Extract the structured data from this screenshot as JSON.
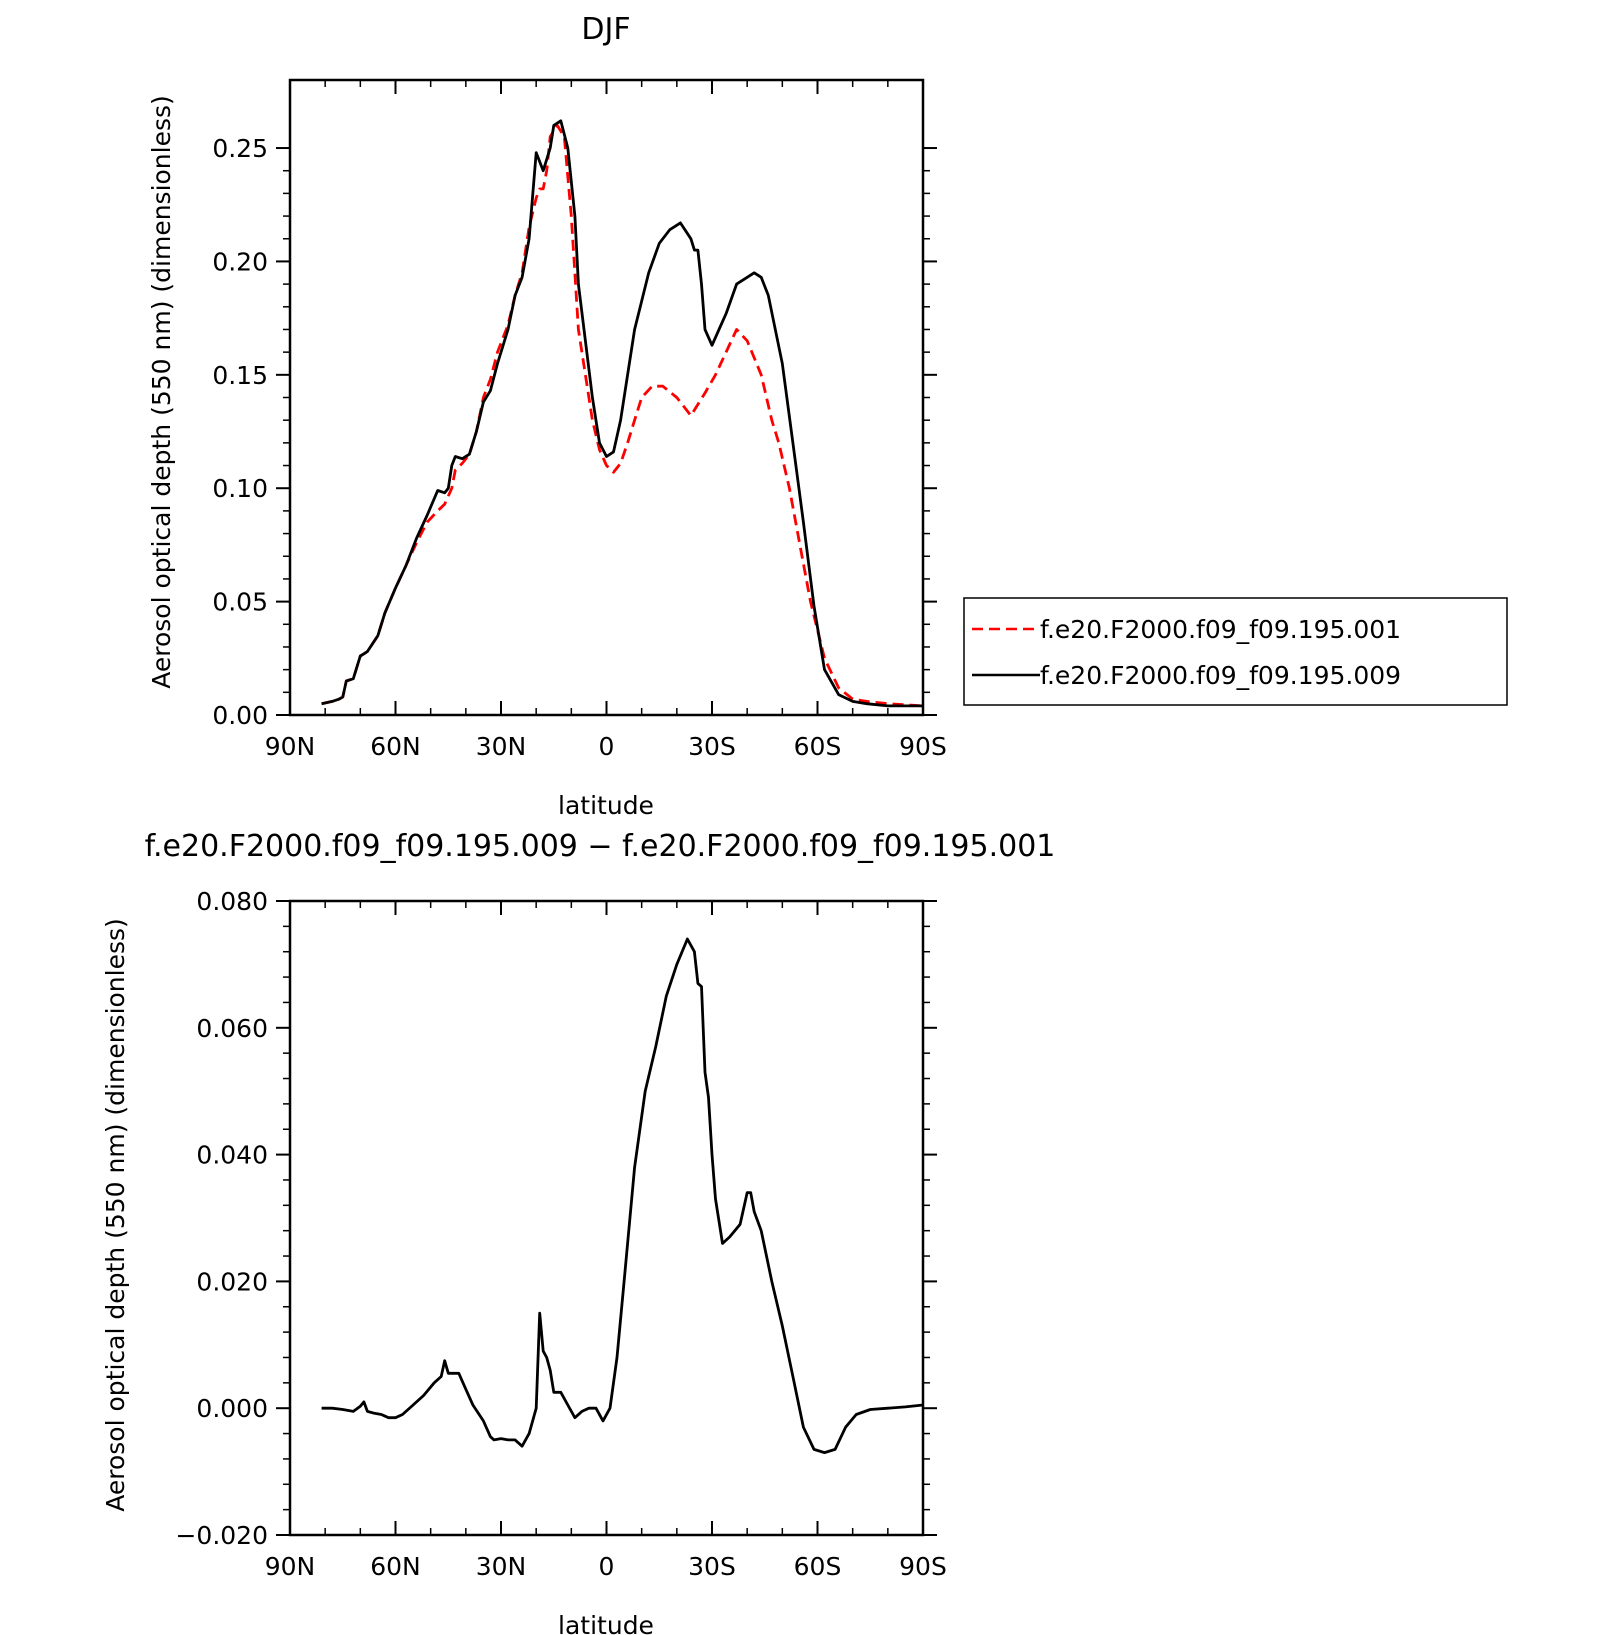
{
  "chart_data": [
    {
      "type": "line",
      "title": "DJF",
      "xlabel": "latitude",
      "ylabel": "Aerosol optical depth (550 nm) (dimensionless)",
      "xlim": [
        90,
        -90
      ],
      "ylim": [
        0,
        0.28
      ],
      "xticks": [
        90,
        60,
        30,
        0,
        -30,
        -60,
        -90
      ],
      "xtick_labels": [
        "90N",
        "60N",
        "30N",
        "0",
        "30S",
        "60S",
        "90S"
      ],
      "yticks": [
        0,
        0.05,
        0.1,
        0.15,
        0.2,
        0.25
      ],
      "ytick_labels": [
        "0.00",
        "0.05",
        "0.10",
        "0.15",
        "0.20",
        "0.25"
      ],
      "legend": {
        "placement": "outside-right"
      },
      "series": [
        {
          "name": "f.e20.F2000.f09_f09.195.001",
          "color": "#ff0000",
          "style": "dashed",
          "x": [
            81,
            78,
            76,
            75,
            74,
            72,
            70,
            69,
            68,
            65,
            63,
            60,
            57,
            54,
            51,
            48,
            46,
            44,
            43,
            41,
            39,
            37,
            35,
            33,
            31,
            28,
            26,
            24,
            22,
            20,
            19,
            18,
            17,
            16,
            14,
            12,
            10,
            8,
            7,
            6,
            4,
            2,
            0,
            -2,
            -4,
            -6,
            -8,
            -10,
            -13,
            -16,
            -20,
            -24,
            -28,
            -31,
            -34,
            -37,
            -40,
            -44,
            -47,
            -49,
            -52,
            -55,
            -58,
            -62,
            -66,
            -70,
            -74,
            -80,
            -90
          ],
          "y": [
            0.005,
            0.006,
            0.007,
            0.008,
            0.015,
            0.016,
            0.026,
            0.027,
            0.028,
            0.035,
            0.045,
            0.056,
            0.066,
            0.076,
            0.085,
            0.09,
            0.093,
            0.1,
            0.108,
            0.111,
            0.115,
            0.125,
            0.14,
            0.148,
            0.16,
            0.172,
            0.185,
            0.195,
            0.215,
            0.228,
            0.232,
            0.232,
            0.24,
            0.255,
            0.26,
            0.255,
            0.22,
            0.17,
            0.16,
            0.15,
            0.13,
            0.117,
            0.11,
            0.107,
            0.111,
            0.12,
            0.13,
            0.14,
            0.145,
            0.145,
            0.14,
            0.132,
            0.142,
            0.15,
            0.16,
            0.17,
            0.165,
            0.15,
            0.13,
            0.12,
            0.1,
            0.075,
            0.05,
            0.025,
            0.012,
            0.007,
            0.006,
            0.005,
            0.004
          ]
        },
        {
          "name": "f.e20.F2000.f09_f09.195.009",
          "color": "#000000",
          "style": "solid",
          "x": [
            81,
            78,
            76,
            75,
            74,
            72,
            70,
            69,
            68,
            65,
            63,
            60,
            57,
            54,
            51,
            48,
            46,
            45,
            44,
            43,
            41,
            39,
            37,
            35,
            33,
            31,
            28,
            26,
            24,
            22,
            20,
            18,
            17,
            16,
            15,
            13,
            11,
            9,
            8,
            6,
            4,
            2,
            0,
            -2,
            -4,
            -6,
            -8,
            -12,
            -15,
            -18,
            -21,
            -24,
            -25,
            -26,
            -27,
            -28,
            -30,
            -32,
            -34,
            -37,
            -40,
            -42,
            -44,
            -46,
            -48,
            -50,
            -53,
            -56,
            -59,
            -62,
            -66,
            -70,
            -74,
            -80,
            -90
          ],
          "y": [
            0.005,
            0.006,
            0.007,
            0.008,
            0.015,
            0.016,
            0.026,
            0.027,
            0.028,
            0.035,
            0.045,
            0.056,
            0.066,
            0.078,
            0.088,
            0.099,
            0.098,
            0.1,
            0.11,
            0.114,
            0.113,
            0.115,
            0.125,
            0.138,
            0.143,
            0.155,
            0.17,
            0.185,
            0.193,
            0.21,
            0.248,
            0.24,
            0.245,
            0.25,
            0.26,
            0.262,
            0.25,
            0.22,
            0.19,
            0.165,
            0.14,
            0.12,
            0.114,
            0.116,
            0.13,
            0.15,
            0.17,
            0.195,
            0.208,
            0.214,
            0.217,
            0.21,
            0.205,
            0.205,
            0.19,
            0.17,
            0.163,
            0.17,
            0.177,
            0.19,
            0.193,
            0.195,
            0.193,
            0.185,
            0.17,
            0.155,
            0.12,
            0.085,
            0.048,
            0.02,
            0.009,
            0.006,
            0.005,
            0.004,
            0.004
          ]
        }
      ]
    },
    {
      "type": "line",
      "title": "f.e20.F2000.f09_f09.195.009 − f.e20.F2000.f09_f09.195.001",
      "xlabel": "latitude",
      "ylabel": "Aerosol optical depth (550 nm) (dimensionless)",
      "xlim": [
        90,
        -90
      ],
      "ylim": [
        -0.02,
        0.08
      ],
      "xticks": [
        90,
        60,
        30,
        0,
        -30,
        -60,
        -90
      ],
      "xtick_labels": [
        "90N",
        "60N",
        "30N",
        "0",
        "30S",
        "60S",
        "90S"
      ],
      "yticks": [
        -0.02,
        0,
        0.02,
        0.04,
        0.06,
        0.08
      ],
      "ytick_labels": [
        "−0.020",
        "0.000",
        "0.020",
        "0.040",
        "0.060",
        "0.080"
      ],
      "series": [
        {
          "color": "#000000",
          "style": "solid",
          "x": [
            81,
            78,
            75,
            72,
            70,
            69,
            68,
            66,
            64,
            62,
            60,
            58,
            55,
            52,
            49,
            47,
            46,
            45,
            44,
            42,
            40,
            38,
            35,
            33,
            32,
            30,
            28,
            26,
            24,
            22,
            20,
            19,
            18,
            17,
            16,
            15,
            14,
            13,
            11,
            9,
            7,
            5,
            3,
            1,
            -1,
            -3,
            -5,
            -8,
            -11,
            -14,
            -17,
            -20,
            -23,
            -25,
            -26,
            -27,
            -28,
            -29,
            -30,
            -31,
            -33,
            -35,
            -38,
            -40,
            -41,
            -42,
            -44,
            -47,
            -50,
            -53,
            -56,
            -59,
            -62,
            -65,
            -68,
            -71,
            -75,
            -80,
            -85,
            -90
          ],
          "y": [
            0,
            0,
            -0.0002,
            -0.0005,
            0.0003,
            0.001,
            -0.0005,
            -0.0008,
            -0.001,
            -0.0015,
            -0.0015,
            -0.001,
            0.0005,
            0.002,
            0.004,
            0.005,
            0.0075,
            0.0055,
            0.0055,
            0.0055,
            0.003,
            0.0005,
            -0.002,
            -0.0045,
            -0.005,
            -0.0048,
            -0.005,
            -0.005,
            -0.006,
            -0.004,
            0,
            0.015,
            0.009,
            0.008,
            0.006,
            0.0025,
            0.0025,
            0.0025,
            0.0005,
            -0.0015,
            -0.0005,
            0,
            0,
            -0.002,
            0,
            0.008,
            0.02,
            0.038,
            0.05,
            0.057,
            0.065,
            0.07,
            0.074,
            0.072,
            0.067,
            0.0665,
            0.053,
            0.049,
            0.04,
            0.033,
            0.026,
            0.027,
            0.029,
            0.034,
            0.034,
            0.031,
            0.028,
            0.02,
            0.013,
            0.005,
            -0.003,
            -0.0065,
            -0.007,
            -0.0065,
            -0.003,
            -0.001,
            -0.0002,
            0,
            0.0002,
            0.0005
          ]
        }
      ]
    }
  ]
}
